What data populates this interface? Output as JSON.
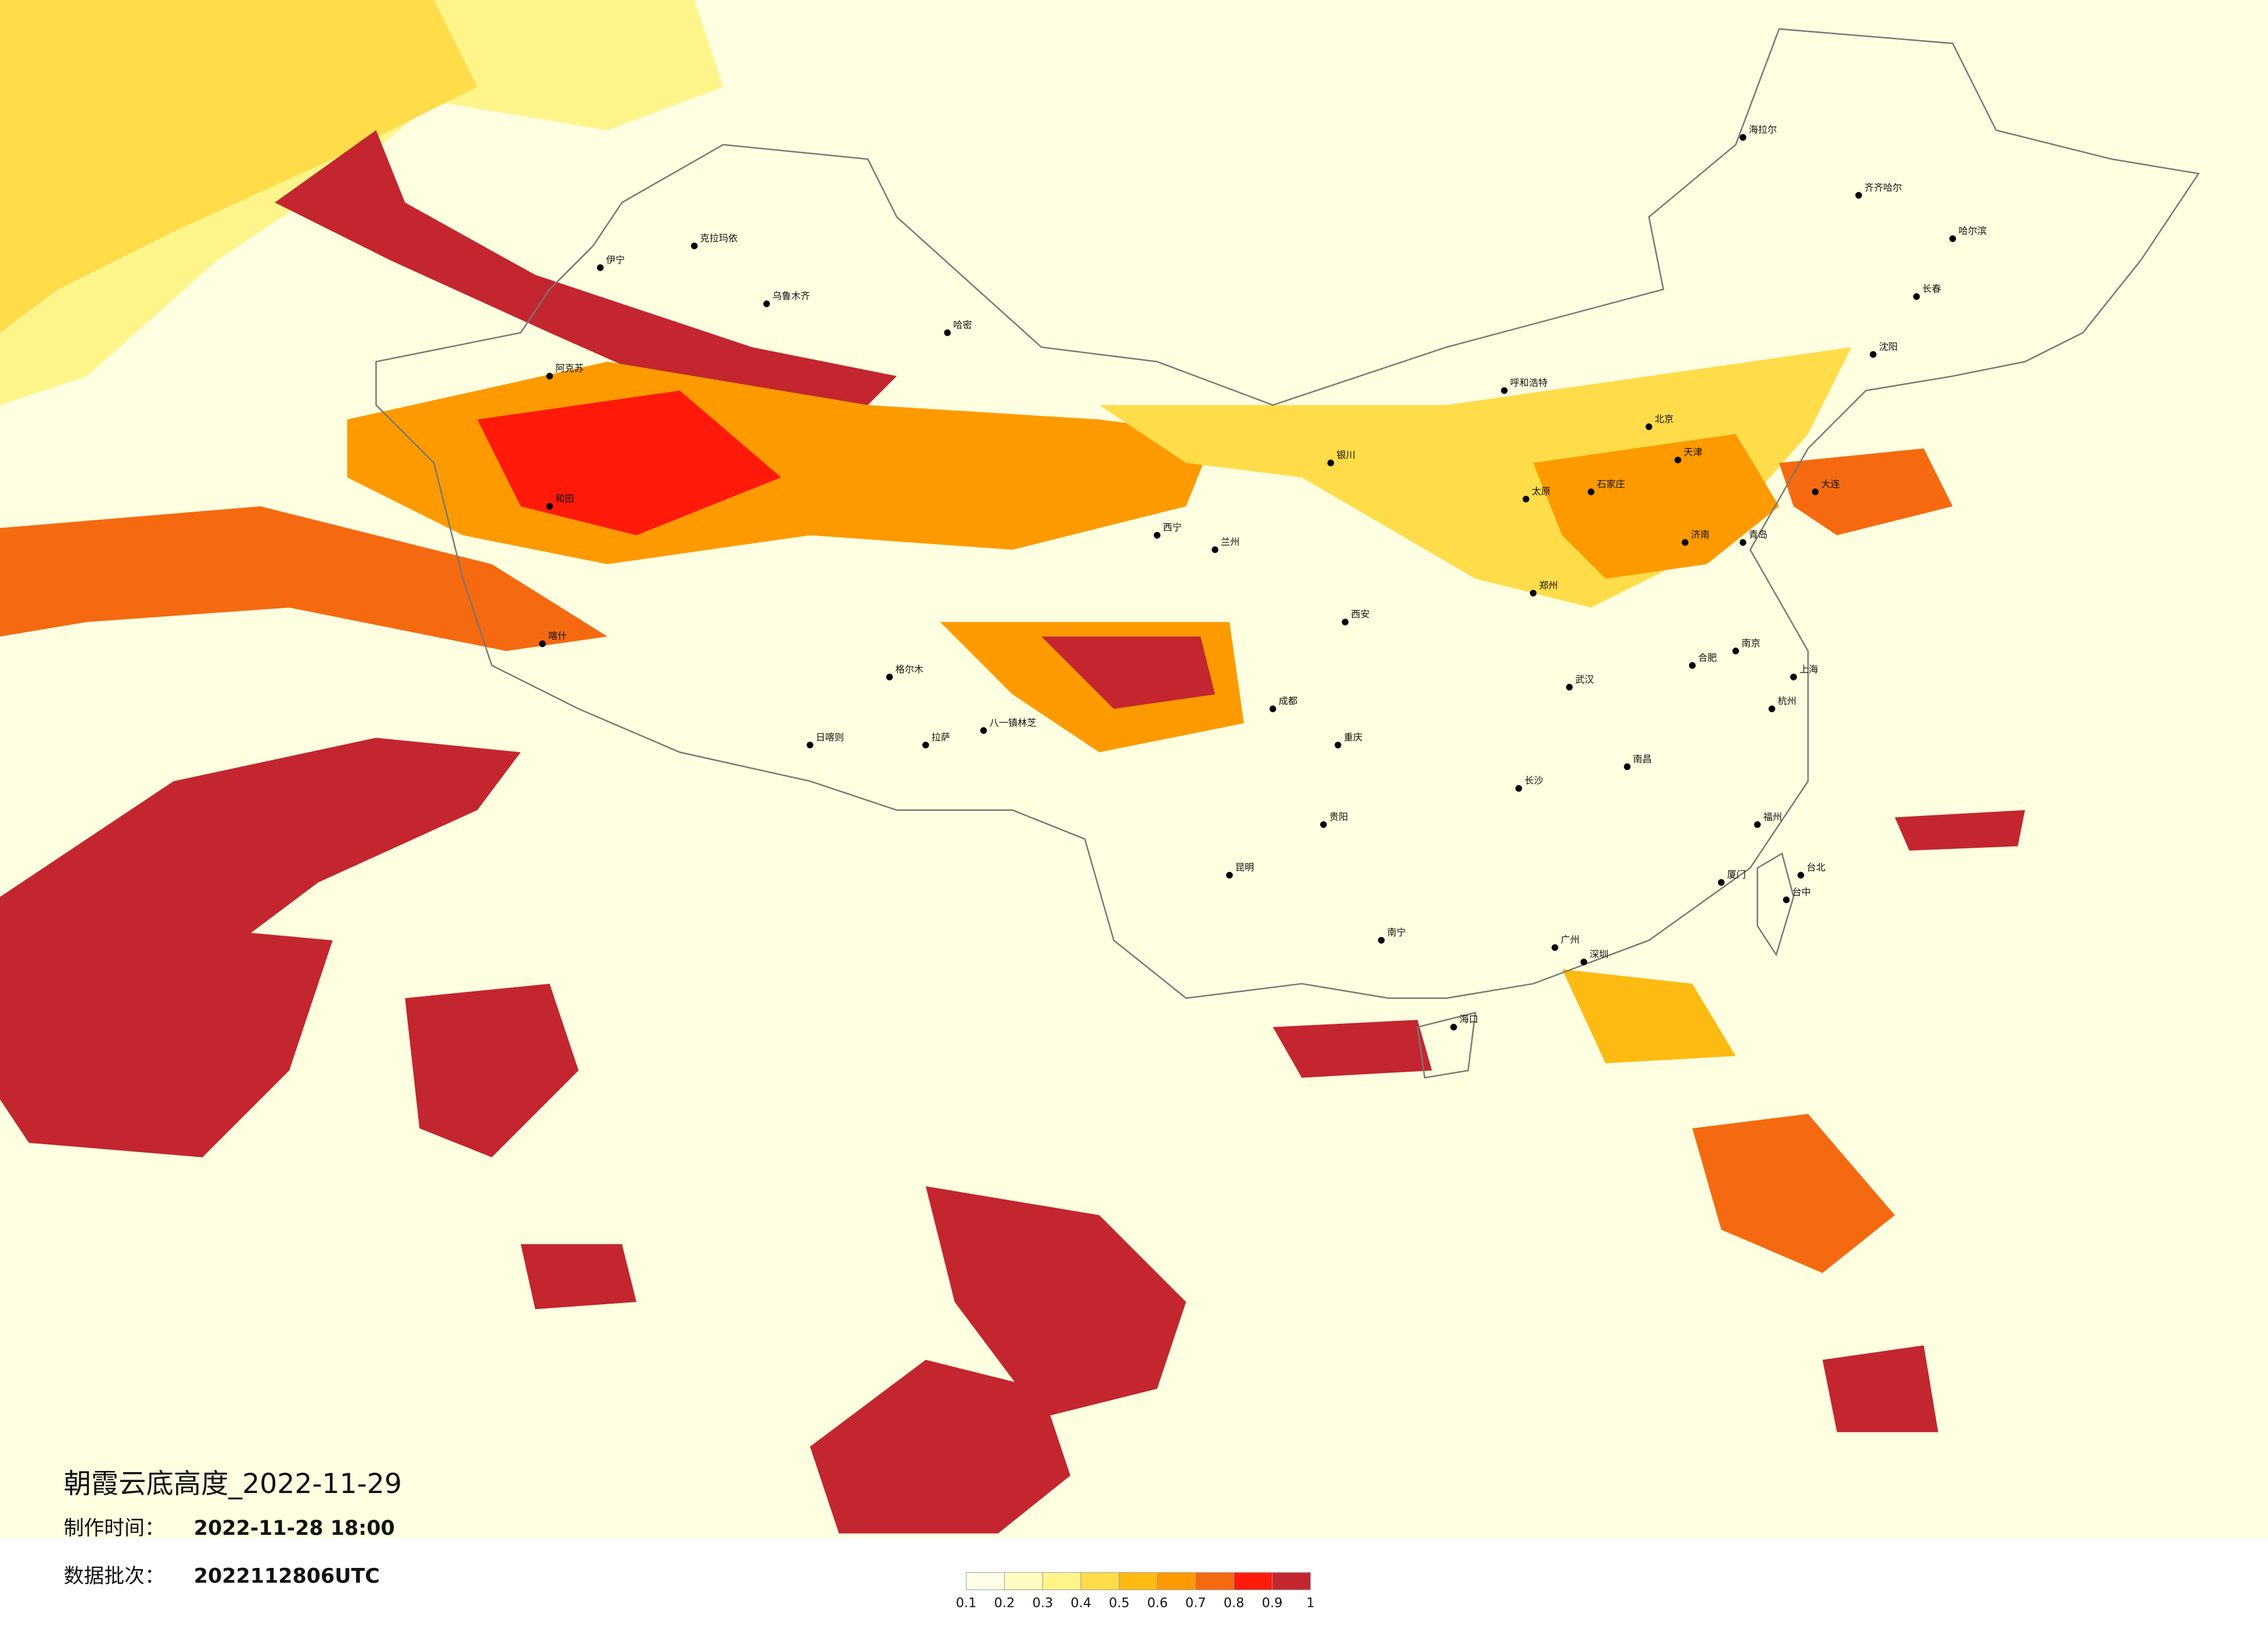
{
  "title": "朝霞云底高度_2022-11-29",
  "made_label": "制作时间：",
  "made_time": "2022-11-28 18:00",
  "batch_label": "数据批次：",
  "batch": "2022112806UTC",
  "legend": {
    "colors": [
      "#fefee8",
      "#fefcc0",
      "#fef58a",
      "#fedc4a",
      "#fdba12",
      "#fd9a00",
      "#f56a10",
      "#ff1a0a",
      "#c3262e"
    ],
    "ticks": [
      0.1,
      0.2,
      0.3,
      0.4,
      0.5,
      0.6,
      0.7,
      0.8,
      0.9,
      1
    ]
  },
  "cities": [
    "北京",
    "天津",
    "上海",
    "广州",
    "深圳",
    "重庆",
    "成都",
    "武汉",
    "西安",
    "兰州",
    "西宁",
    "拉萨",
    "八一镇林芝",
    "日喀则",
    "乌鲁木齐",
    "呼和浩特",
    "哈尔滨",
    "长春",
    "沈阳",
    "济南",
    "郑州",
    "南京",
    "杭州",
    "合肥",
    "长沙",
    "南昌",
    "福州",
    "昆明",
    "贵阳",
    "南宁",
    "海口",
    "台北",
    "银川",
    "太原",
    "石家庄",
    "喀什",
    "哈密",
    "克拉玛依",
    "和田",
    "阿克苏",
    "海拉尔",
    "齐齐哈尔",
    "大连",
    "青岛",
    "厦门",
    "格尔木",
    "伊宁",
    "台中"
  ]
}
